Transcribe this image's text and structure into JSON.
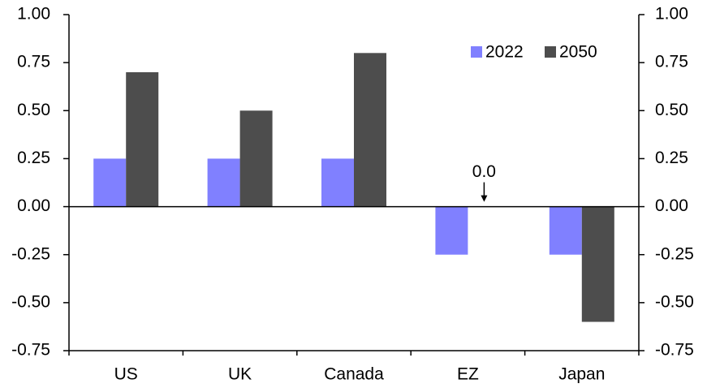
{
  "chart_data": {
    "type": "bar",
    "categories": [
      "US",
      "UK",
      "Canada",
      "EZ",
      "Japan"
    ],
    "series": [
      {
        "name": "2022",
        "color": "#8080ff",
        "values": [
          0.25,
          0.25,
          0.25,
          -0.25,
          -0.25
        ]
      },
      {
        "name": "2050",
        "color": "#4d4d4d",
        "values": [
          0.7,
          0.5,
          0.8,
          0,
          -0.6
        ],
        "value_labels": [
          null,
          null,
          null,
          "0.0",
          null
        ]
      }
    ],
    "ylim": [
      -0.75,
      1.0
    ],
    "yticks": [
      {
        "value": 1.0,
        "label": "1.00"
      },
      {
        "value": 0.75,
        "label": "0.75"
      },
      {
        "value": 0.5,
        "label": "0.50"
      },
      {
        "value": 0.25,
        "label": "0.25"
      },
      {
        "value": 0,
        "label": "0.00"
      },
      {
        "value": -0.25,
        "label": "-0.25"
      },
      {
        "value": -0.5,
        "label": "-0.50"
      },
      {
        "value": -0.75,
        "label": "-0.75"
      }
    ],
    "y2lim": [
      -0.75,
      1.0
    ],
    "y2ticks": [
      {
        "value": 1.0,
        "label": "1.00"
      },
      {
        "value": 0.75,
        "label": "0.75"
      },
      {
        "value": 0.5,
        "label": "0.50"
      },
      {
        "value": 0.25,
        "label": "0.25"
      },
      {
        "value": 0,
        "label": "0.00"
      },
      {
        "value": -0.25,
        "label": "-0.25"
      },
      {
        "value": -0.5,
        "label": "-0.50"
      },
      {
        "value": -0.75,
        "label": "-0.75"
      }
    ],
    "legend": "upper right"
  }
}
